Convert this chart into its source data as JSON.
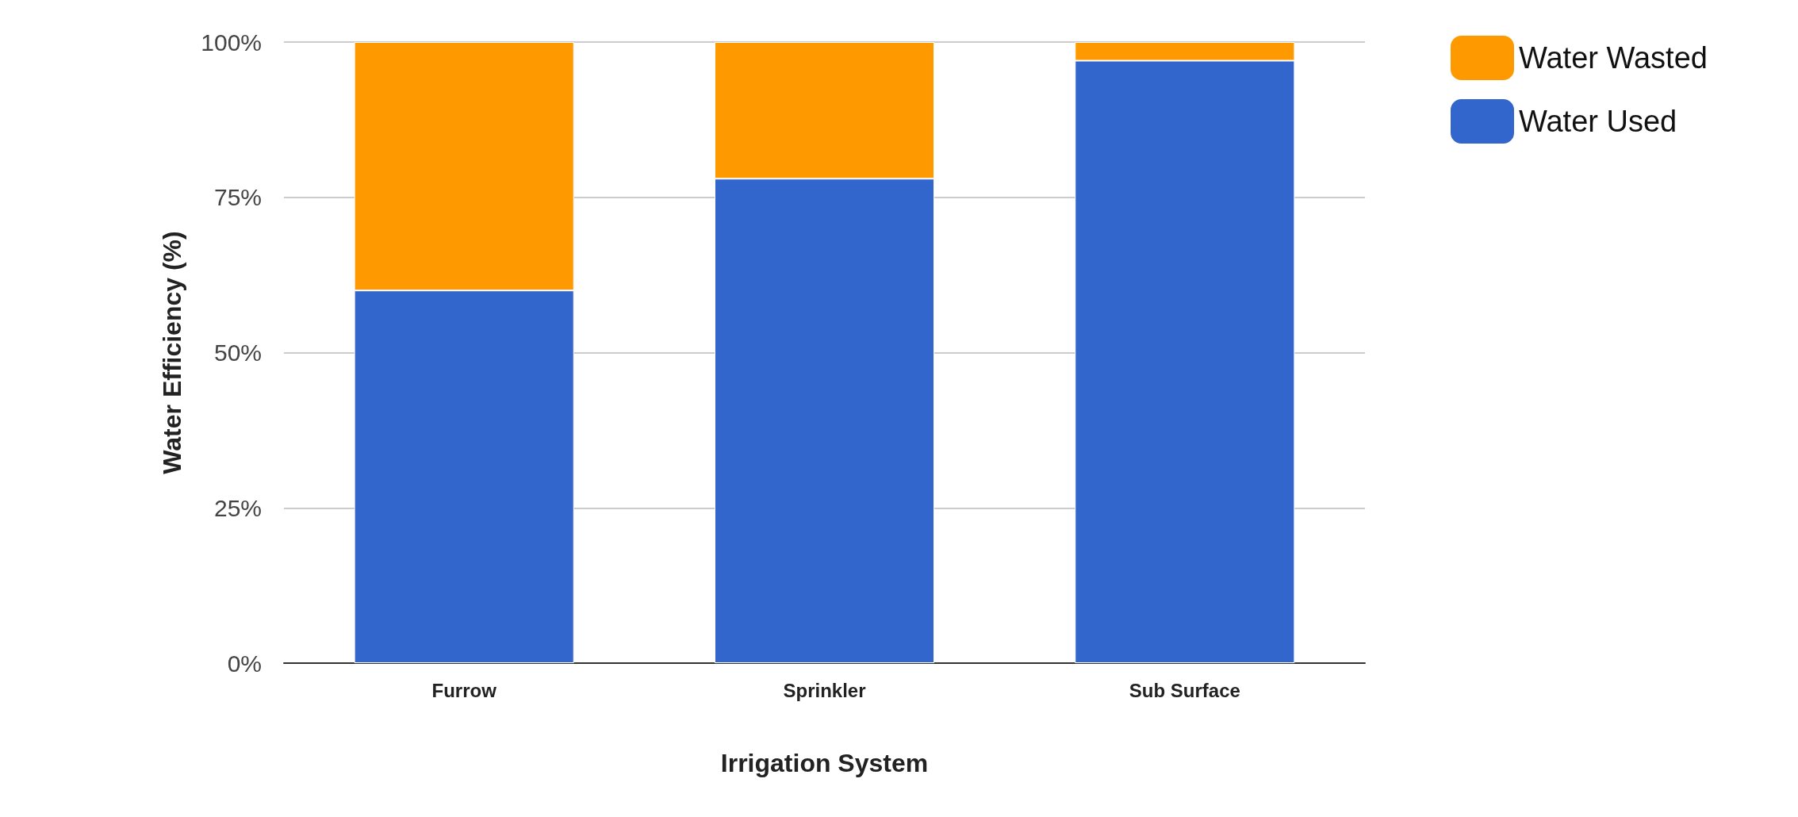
{
  "chart_data": {
    "type": "bar",
    "stacked": true,
    "xlabel": "Irrigation System",
    "ylabel": "Water Efficiency (%)",
    "categories": [
      "Furrow",
      "Sprinkler",
      "Sub Surface"
    ],
    "series": [
      {
        "name": "Water Used",
        "color": "#3366cc",
        "values": [
          60,
          78,
          97
        ]
      },
      {
        "name": "Water Wasted",
        "color": "#ff9900",
        "values": [
          40,
          22,
          3
        ]
      }
    ],
    "ylim": [
      0,
      100
    ],
    "yticks": [
      {
        "value": 0,
        "label": "0%"
      },
      {
        "value": 25,
        "label": "25%"
      },
      {
        "value": 50,
        "label": "50%"
      },
      {
        "value": 75,
        "label": "75%"
      },
      {
        "value": 100,
        "label": "100%"
      }
    ],
    "grid": "y",
    "legend": "top right"
  }
}
